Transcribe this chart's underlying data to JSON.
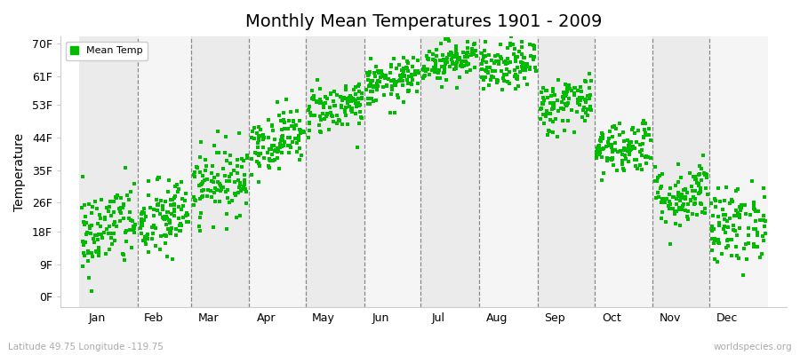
{
  "title": "Monthly Mean Temperatures 1901 - 2009",
  "ylabel": "Temperature",
  "subtitle": "Latitude 49.75 Longitude -119.75",
  "watermark": "worldspecies.org",
  "dot_color": "#00bb00",
  "years": 109,
  "month_names": [
    "Jan",
    "Feb",
    "Mar",
    "Apr",
    "May",
    "Jun",
    "Jul",
    "Aug",
    "Sep",
    "Oct",
    "Nov",
    "Dec"
  ],
  "month_days": [
    31,
    28,
    31,
    30,
    31,
    30,
    31,
    31,
    30,
    31,
    30,
    31
  ],
  "monthly_mean_F": [
    19.0,
    21.5,
    32.0,
    43.5,
    52.5,
    59.5,
    65.5,
    63.5,
    53.5,
    41.5,
    28.0,
    20.0
  ],
  "monthly_std_F": [
    6.0,
    5.5,
    5.0,
    4.0,
    3.5,
    3.0,
    2.8,
    3.2,
    3.8,
    3.8,
    4.5,
    5.5
  ],
  "ytick_vals": [
    0,
    9,
    18,
    26,
    35,
    44,
    53,
    61,
    70
  ],
  "ytick_labels": [
    "0F",
    "9F",
    "18F",
    "26F",
    "35F",
    "44F",
    "53F",
    "61F",
    "70F"
  ],
  "ylim": [
    -3,
    72
  ],
  "xlim_start": -10,
  "xlim_end": 375,
  "marker_size": 5,
  "bg_colors": [
    "#ebebeb",
    "#f5f5f5"
  ],
  "fig_bg": "#ffffff",
  "title_fontsize": 14,
  "label_fontsize": 9,
  "ylabel_fontsize": 10
}
